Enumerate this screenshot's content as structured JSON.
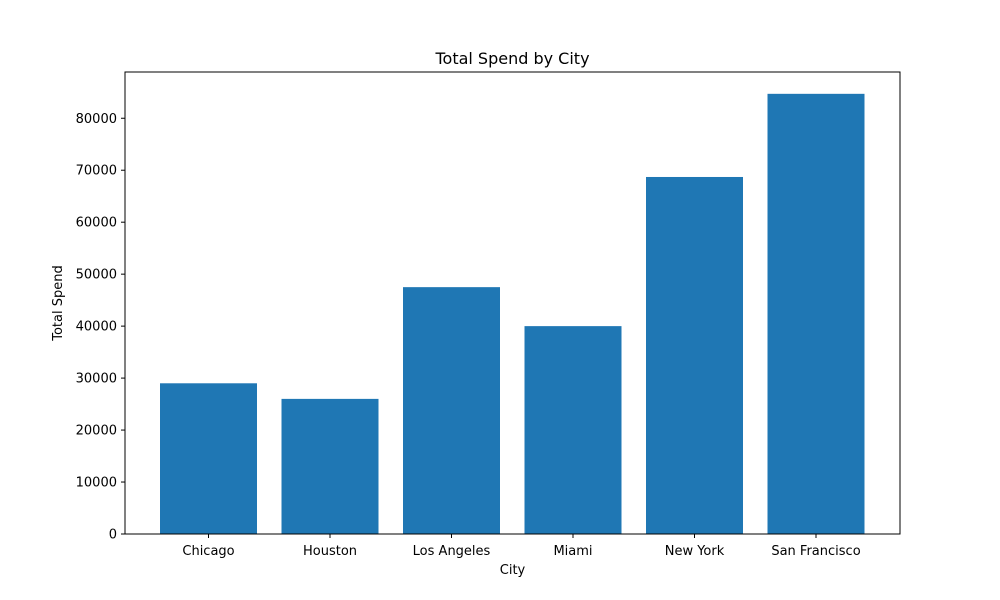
{
  "chart_data": {
    "type": "bar",
    "title": "Total Spend by City",
    "xlabel": "City",
    "ylabel": "Total Spend",
    "categories": [
      "Chicago",
      "Houston",
      "Los Angeles",
      "Miami",
      "New York",
      "San Francisco"
    ],
    "values": [
      29000,
      26000,
      47500,
      40000,
      68700,
      84700
    ],
    "ylim": [
      0,
      88900
    ],
    "yticks": [
      0,
      10000,
      20000,
      30000,
      40000,
      50000,
      60000,
      70000,
      80000
    ],
    "grid": false,
    "legend": "none",
    "bar_color": "#1f77b4"
  }
}
